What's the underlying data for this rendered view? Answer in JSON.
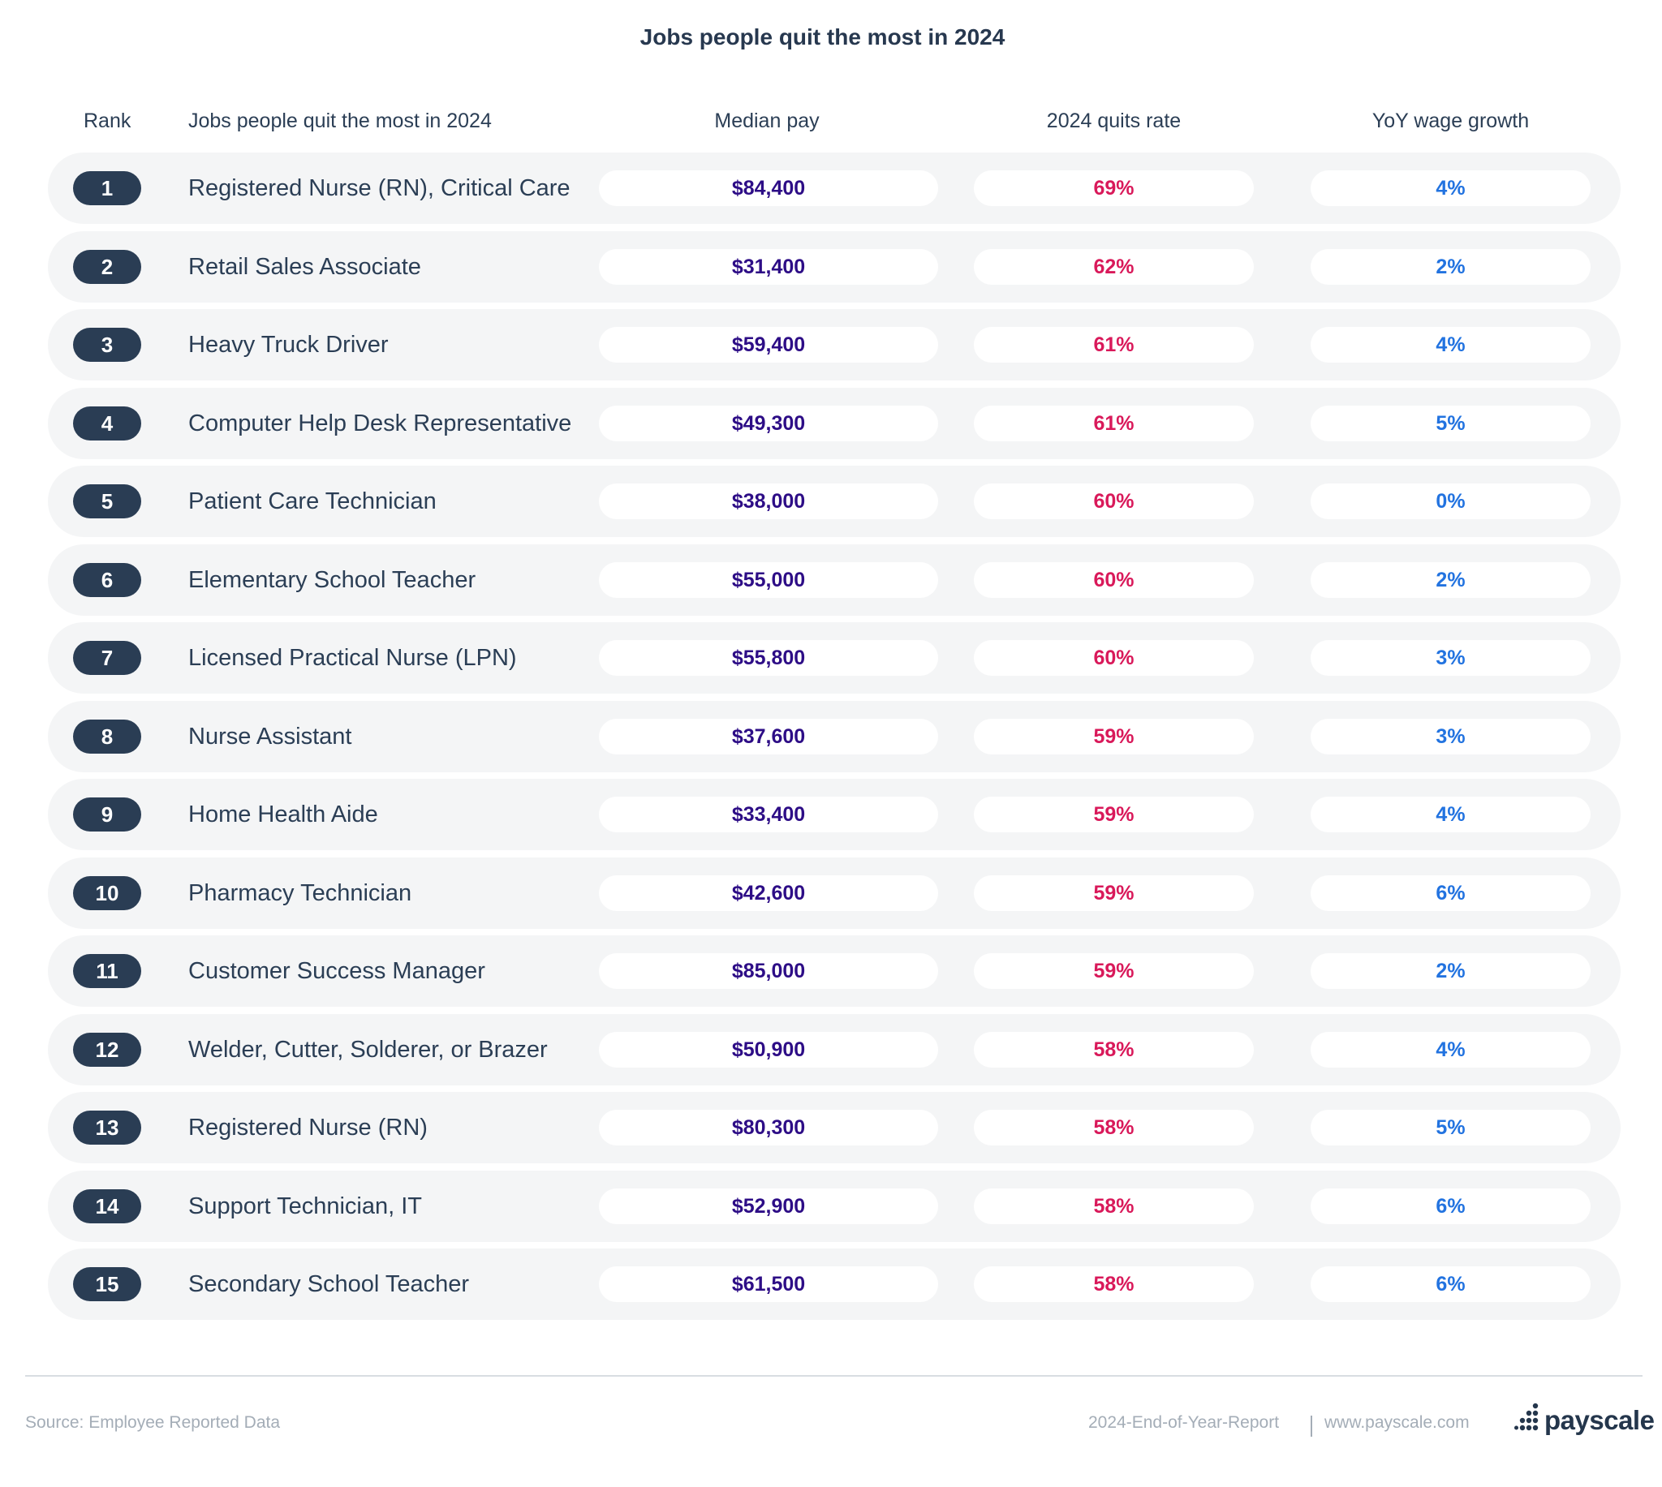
{
  "chart_data": {
    "type": "table",
    "title": "Jobs people quit the most in 2024",
    "columns": [
      "Rank",
      "Jobs people quit the most in 2024",
      "Median pay",
      "2024 quits rate",
      "YoY wage growth"
    ],
    "rows": [
      {
        "rank": "1",
        "job": "Registered Nurse (RN), Critical Care",
        "pay": "$84,400",
        "quits": "69%",
        "yoy": "4%"
      },
      {
        "rank": "2",
        "job": "Retail Sales Associate",
        "pay": "$31,400",
        "quits": "62%",
        "yoy": "2%"
      },
      {
        "rank": "3",
        "job": "Heavy Truck Driver",
        "pay": "$59,400",
        "quits": "61%",
        "yoy": "4%"
      },
      {
        "rank": "4",
        "job": "Computer Help Desk Representative",
        "pay": "$49,300",
        "quits": "61%",
        "yoy": "5%"
      },
      {
        "rank": "5",
        "job": "Patient Care Technician",
        "pay": "$38,000",
        "quits": "60%",
        "yoy": "0%"
      },
      {
        "rank": "6",
        "job": "Elementary School Teacher",
        "pay": "$55,000",
        "quits": "60%",
        "yoy": "2%"
      },
      {
        "rank": "7",
        "job": "Licensed Practical Nurse (LPN)",
        "pay": "$55,800",
        "quits": "60%",
        "yoy": "3%"
      },
      {
        "rank": "8",
        "job": "Nurse Assistant",
        "pay": "$37,600",
        "quits": "59%",
        "yoy": "3%"
      },
      {
        "rank": "9",
        "job": "Home Health Aide",
        "pay": "$33,400",
        "quits": "59%",
        "yoy": "4%"
      },
      {
        "rank": "10",
        "job": "Pharmacy Technician",
        "pay": "$42,600",
        "quits": "59%",
        "yoy": "6%"
      },
      {
        "rank": "11",
        "job": "Customer Success Manager",
        "pay": "$85,000",
        "quits": "59%",
        "yoy": "2%"
      },
      {
        "rank": "12",
        "job": "Welder, Cutter, Solderer, or Brazer",
        "pay": "$50,900",
        "quits": "58%",
        "yoy": "4%"
      },
      {
        "rank": "13",
        "job": "Registered Nurse (RN)",
        "pay": "$80,300",
        "quits": "58%",
        "yoy": "5%"
      },
      {
        "rank": "14",
        "job": "Support Technician, IT",
        "pay": "$52,900",
        "quits": "58%",
        "yoy": "6%"
      },
      {
        "rank": "15",
        "job": "Secondary School Teacher",
        "pay": "$61,500",
        "quits": "58%",
        "yoy": "6%"
      }
    ]
  },
  "footer": {
    "source": "Source: Employee Reported Data",
    "report": "2024-End-of-Year-Report",
    "site": "www.payscale.com",
    "logo_text": "payscale"
  },
  "colors": {
    "rank_pill": "#2a3d54",
    "pay_text": "#2d0d86",
    "quits_text": "#d9195a",
    "yoy_text": "#2273e0",
    "row_background": "#f4f5f6"
  },
  "icons": {
    "logo": "payscale-dots-logo"
  }
}
